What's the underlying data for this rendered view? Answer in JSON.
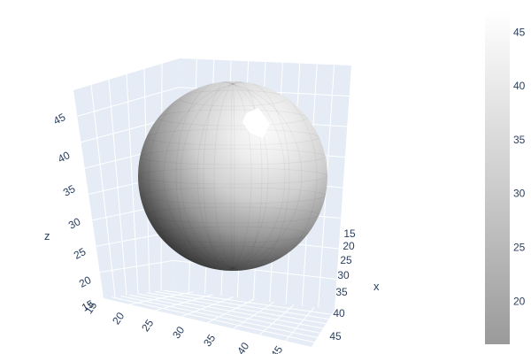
{
  "chart_data": {
    "type": "surface",
    "title": "",
    "surface": {
      "shape": "sphere",
      "center": {
        "x": 30,
        "y": 30,
        "z": 30
      },
      "radius": 17,
      "colorscale": "greys",
      "color_range": [
        16,
        47
      ]
    },
    "axes": {
      "x": {
        "label": "x",
        "ticks": [
          "15",
          "20",
          "25",
          "30",
          "35",
          "40",
          "45"
        ]
      },
      "y": {
        "label": "",
        "ticks": [
          "15",
          "20",
          "25",
          "30",
          "35",
          "40",
          "45"
        ]
      },
      "z": {
        "label": "z",
        "ticks": [
          "15",
          "20",
          "25",
          "30",
          "35",
          "40",
          "45"
        ]
      }
    },
    "colorbar": {
      "ticks": [
        "20",
        "25",
        "30",
        "35",
        "40",
        "45"
      ],
      "range": [
        16,
        47
      ]
    },
    "background_color": "#e5ecf6",
    "grid": true
  }
}
